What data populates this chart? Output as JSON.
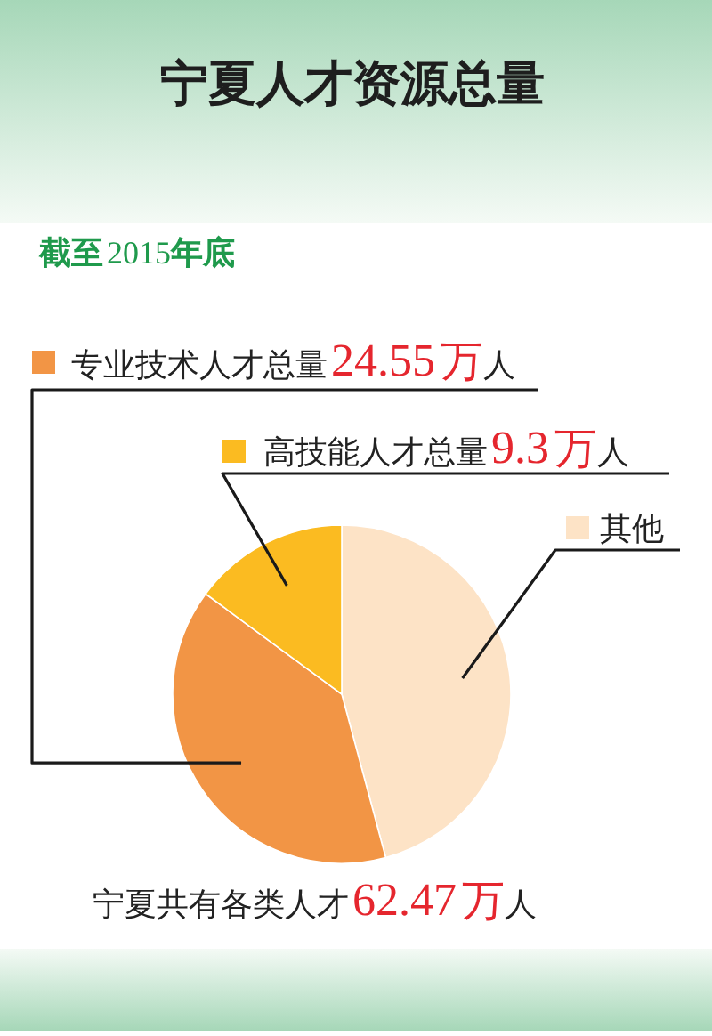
{
  "chart_data": {
    "type": "pie",
    "title": "宁夏人才资源总量",
    "subtitle": "截至2015年底",
    "categories": [
      "其他",
      "专业技术人才总量",
      "高技能人才总量"
    ],
    "values": [
      28.62,
      24.55,
      9.3
    ],
    "colors": [
      "#fde3c6",
      "#f29545",
      "#fbbb21"
    ],
    "value_labels": [
      null,
      "24.55万人",
      "9.3万人"
    ],
    "legend": "top",
    "annotations": [
      "宁夏共有各类人才62.47万人"
    ]
  }
}
